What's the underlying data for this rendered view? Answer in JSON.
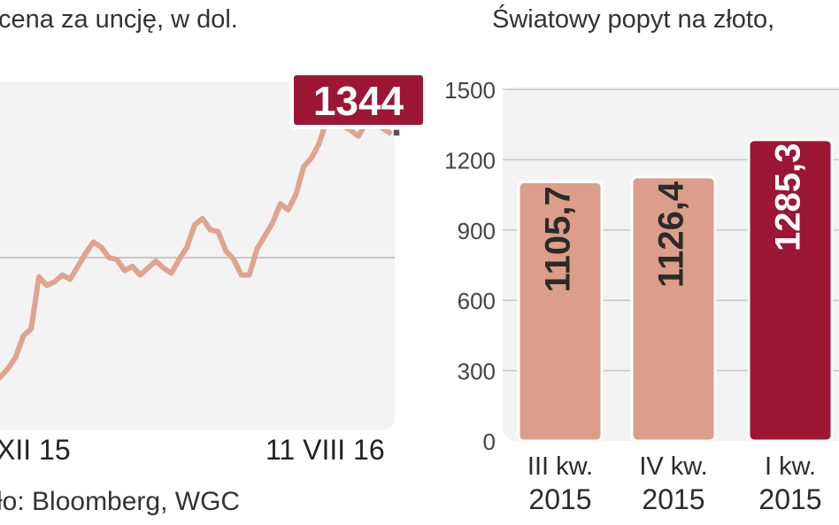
{
  "left_title": "cena za uncję, w dol.",
  "right_title": "Światowy popyt na złoto,",
  "source": "ło: Bloomberg, WGC",
  "colors": {
    "accent": "#9b1733",
    "bar": "#dc9e8a",
    "line": "#dea48e",
    "panel": "#f3f3f3"
  },
  "chart_data": [
    {
      "type": "line",
      "xlabel": "",
      "ylabel": "",
      "x_ticks": [
        "XII 15",
        "11 VIII 16"
      ],
      "last_value": 1344,
      "last_label": "1344",
      "series": [
        {
          "values": [
            1062,
            1072,
            1085,
            1110,
            1118,
            1178,
            1168,
            1172,
            1180,
            1175,
            1190,
            1205,
            1218,
            1212,
            1200,
            1198,
            1185,
            1190,
            1180,
            1188,
            1196,
            1188,
            1182,
            1198,
            1212,
            1238,
            1245,
            1232,
            1230,
            1208,
            1198,
            1180,
            1180,
            1210,
            1225,
            1240,
            1262,
            1255,
            1273,
            1305,
            1315,
            1332,
            1360,
            1370,
            1352,
            1347,
            1340,
            1355,
            1365,
            1350,
            1344
          ]
        }
      ]
    },
    {
      "type": "bar",
      "categories": [
        "III kw. 2015",
        "IV kw. 2015",
        "I kw. 2015"
      ],
      "category_lines": [
        [
          "III kw.",
          "2015"
        ],
        [
          "IV kw.",
          "2015"
        ],
        [
          "I kw.",
          "2015"
        ]
      ],
      "values": [
        1105.7,
        1126.4,
        1285.3
      ],
      "value_labels": [
        "1105,7",
        "1126,4",
        "1285,3"
      ],
      "highlight_index": 2,
      "ylim": [
        0,
        1500
      ],
      "y_ticks": [
        "0",
        "300",
        "600",
        "900",
        "1200",
        "1500"
      ],
      "grid": true
    }
  ]
}
